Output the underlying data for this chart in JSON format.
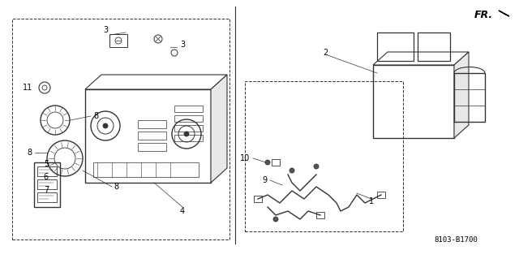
{
  "bg_color": "#ffffff",
  "line_color": "#333333",
  "part_number": "8103-B1700",
  "fr_label": "FR.",
  "figsize": [
    6.4,
    3.19
  ],
  "dpi": 100
}
